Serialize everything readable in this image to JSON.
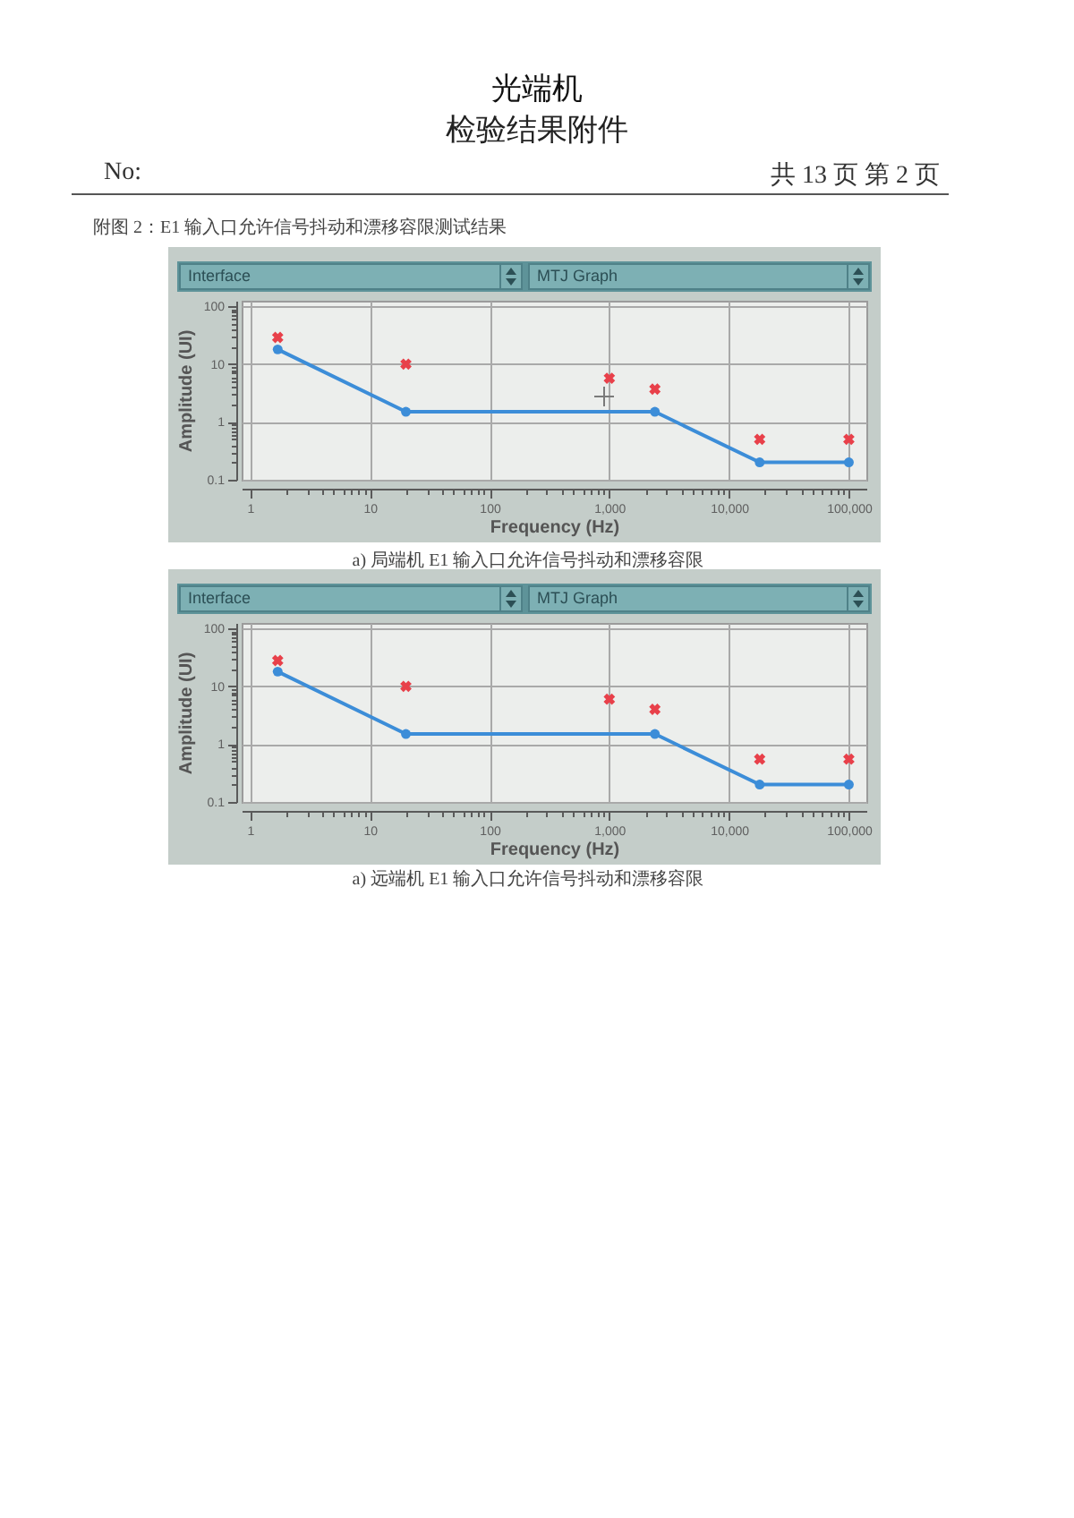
{
  "chart_data": [
    {
      "type": "line",
      "title": "光端机",
      "subtitle": "检验结果附件",
      "xlabel": "Frequency (Hz)",
      "ylabel": "Amplitude (UI)",
      "annotations": [
        "No:",
        "共 13 页 第 2 页",
        "附图 2：E1 输入口允许信号抖动和漂移容限测试结果",
        "Interface",
        "MTJ Graph",
        "a) 局端机 E1 输入口允许信号抖动和漂移容限"
      ],
      "log": "xy",
      "grid": true,
      "xlim": [
        0.85,
        140000
      ],
      "ylim": [
        0.1,
        125
      ],
      "xticks": [
        1,
        {
          "value": 2,
          "label": null
        },
        {
          "value": 3,
          "label": null
        },
        {
          "value": 4,
          "label": null
        },
        {
          "value": 5,
          "label": null
        },
        {
          "value": 6,
          "label": null
        },
        {
          "value": 7,
          "label": null
        },
        {
          "value": 8,
          "label": null
        },
        {
          "value": 9,
          "label": null
        },
        10,
        {
          "value": 20,
          "label": null
        },
        {
          "value": 30,
          "label": null
        },
        {
          "value": 40,
          "label": null
        },
        {
          "value": 50,
          "label": null
        },
        {
          "value": 60,
          "label": null
        },
        {
          "value": 70,
          "label": null
        },
        {
          "value": 80,
          "label": null
        },
        {
          "value": 90,
          "label": null
        },
        100,
        {
          "value": 200,
          "label": null
        },
        {
          "value": 300,
          "label": null
        },
        {
          "value": 400,
          "label": null
        },
        {
          "value": 500,
          "label": null
        },
        {
          "value": 600,
          "label": null
        },
        {
          "value": 700,
          "label": null
        },
        {
          "value": 800,
          "label": null
        },
        {
          "value": 900,
          "label": null
        },
        {
          "value": 1000,
          "label": "1,000"
        },
        {
          "value": 2000,
          "label": null
        },
        {
          "value": 3000,
          "label": null
        },
        {
          "value": 4000,
          "label": null
        },
        {
          "value": 5000,
          "label": null
        },
        {
          "value": 6000,
          "label": null
        },
        {
          "value": 7000,
          "label": null
        },
        {
          "value": 8000,
          "label": null
        },
        {
          "value": 9000,
          "label": null
        },
        {
          "value": 10000,
          "label": "10,000"
        },
        {
          "value": 20000,
          "label": null
        },
        {
          "value": 30000,
          "label": null
        },
        {
          "value": 40000,
          "label": null
        },
        {
          "value": 50000,
          "label": null
        },
        {
          "value": 60000,
          "label": null
        },
        {
          "value": 70000,
          "label": null
        },
        {
          "value": 80000,
          "label": null
        },
        {
          "value": 90000,
          "label": null
        },
        {
          "value": 100000,
          "label": "100,000"
        }
      ],
      "yticks": [
        0.1,
        {
          "value": 0.2,
          "label": null
        },
        {
          "value": 0.3,
          "label": null
        },
        {
          "value": 0.4,
          "label": null
        },
        {
          "value": 0.5,
          "label": null
        },
        {
          "value": 0.6,
          "label": null
        },
        {
          "value": 0.7,
          "label": null
        },
        {
          "value": 0.8,
          "label": null
        },
        {
          "value": 0.9,
          "label": null
        },
        1,
        {
          "value": 2,
          "label": null
        },
        {
          "value": 3,
          "label": null
        },
        {
          "value": 4,
          "label": null
        },
        {
          "value": 5,
          "label": null
        },
        {
          "value": 6,
          "label": null
        },
        {
          "value": 7,
          "label": null
        },
        {
          "value": 8,
          "label": null
        },
        {
          "value": 9,
          "label": null
        },
        10,
        {
          "value": 20,
          "label": null
        },
        {
          "value": 30,
          "label": null
        },
        {
          "value": 40,
          "label": null
        },
        {
          "value": 50,
          "label": null
        },
        {
          "value": 60,
          "label": null
        },
        {
          "value": 70,
          "label": null
        },
        {
          "value": 80,
          "label": null
        },
        {
          "value": 90,
          "label": null
        },
        100
      ],
      "series": [
        {
          "color": "#3c8dd8",
          "marker": "circle",
          "x": [
            1.7,
            20,
            2400,
            18000,
            100000
          ],
          "values": [
            18,
            1.5,
            1.5,
            0.2,
            0.2
          ]
        },
        {
          "type": "scatter",
          "color": "#e8404a",
          "marker": "cross",
          "x": [
            1.7,
            20,
            1000,
            2400,
            18000,
            100000
          ],
          "values": [
            29,
            10,
            5.7,
            3.7,
            0.5,
            0.5
          ]
        }
      ]
    },
    {
      "type": "line",
      "xlabel": "Frequency (Hz)",
      "ylabel": "Amplitude (UI)",
      "annotations": [
        "Interface",
        "MTJ Graph",
        "a) 远端机 E1 输入口允许信号抖动和漂移容限"
      ],
      "log": "xy",
      "grid": true,
      "xlim": [
        0.85,
        140000
      ],
      "ylim": [
        0.1,
        125
      ],
      "xticks": [
        1,
        {
          "value": 2,
          "label": null
        },
        {
          "value": 3,
          "label": null
        },
        {
          "value": 4,
          "label": null
        },
        {
          "value": 5,
          "label": null
        },
        {
          "value": 6,
          "label": null
        },
        {
          "value": 7,
          "label": null
        },
        {
          "value": 8,
          "label": null
        },
        {
          "value": 9,
          "label": null
        },
        10,
        {
          "value": 20,
          "label": null
        },
        {
          "value": 30,
          "label": null
        },
        {
          "value": 40,
          "label": null
        },
        {
          "value": 50,
          "label": null
        },
        {
          "value": 60,
          "label": null
        },
        {
          "value": 70,
          "label": null
        },
        {
          "value": 80,
          "label": null
        },
        {
          "value": 90,
          "label": null
        },
        100,
        {
          "value": 200,
          "label": null
        },
        {
          "value": 300,
          "label": null
        },
        {
          "value": 400,
          "label": null
        },
        {
          "value": 500,
          "label": null
        },
        {
          "value": 600,
          "label": null
        },
        {
          "value": 700,
          "label": null
        },
        {
          "value": 800,
          "label": null
        },
        {
          "value": 900,
          "label": null
        },
        {
          "value": 1000,
          "label": "1,000"
        },
        {
          "value": 2000,
          "label": null
        },
        {
          "value": 3000,
          "label": null
        },
        {
          "value": 4000,
          "label": null
        },
        {
          "value": 5000,
          "label": null
        },
        {
          "value": 6000,
          "label": null
        },
        {
          "value": 7000,
          "label": null
        },
        {
          "value": 8000,
          "label": null
        },
        {
          "value": 9000,
          "label": null
        },
        {
          "value": 10000,
          "label": "10,000"
        },
        {
          "value": 20000,
          "label": null
        },
        {
          "value": 30000,
          "label": null
        },
        {
          "value": 40000,
          "label": null
        },
        {
          "value": 50000,
          "label": null
        },
        {
          "value": 60000,
          "label": null
        },
        {
          "value": 70000,
          "label": null
        },
        {
          "value": 80000,
          "label": null
        },
        {
          "value": 90000,
          "label": null
        },
        {
          "value": 100000,
          "label": "100,000"
        }
      ],
      "yticks": [
        0.1,
        {
          "value": 0.2,
          "label": null
        },
        {
          "value": 0.3,
          "label": null
        },
        {
          "value": 0.4,
          "label": null
        },
        {
          "value": 0.5,
          "label": null
        },
        {
          "value": 0.6,
          "label": null
        },
        {
          "value": 0.7,
          "label": null
        },
        {
          "value": 0.8,
          "label": null
        },
        {
          "value": 0.9,
          "label": null
        },
        1,
        {
          "value": 2,
          "label": null
        },
        {
          "value": 3,
          "label": null
        },
        {
          "value": 4,
          "label": null
        },
        {
          "value": 5,
          "label": null
        },
        {
          "value": 6,
          "label": null
        },
        {
          "value": 7,
          "label": null
        },
        {
          "value": 8,
          "label": null
        },
        {
          "value": 9,
          "label": null
        },
        10,
        {
          "value": 20,
          "label": null
        },
        {
          "value": 30,
          "label": null
        },
        {
          "value": 40,
          "label": null
        },
        {
          "value": 50,
          "label": null
        },
        {
          "value": 60,
          "label": null
        },
        {
          "value": 70,
          "label": null
        },
        {
          "value": 80,
          "label": null
        },
        {
          "value": 90,
          "label": null
        },
        100
      ],
      "series": [
        {
          "color": "#3c8dd8",
          "marker": "circle",
          "x": [
            1.7,
            20,
            2400,
            18000,
            100000
          ],
          "values": [
            18,
            1.5,
            1.5,
            0.2,
            0.2
          ]
        },
        {
          "type": "scatter",
          "color": "#e8404a",
          "marker": "cross",
          "x": [
            1.7,
            20,
            1000,
            2400,
            18000,
            100000
          ],
          "values": [
            28,
            10,
            6,
            4,
            0.55,
            0.55
          ]
        }
      ]
    }
  ]
}
